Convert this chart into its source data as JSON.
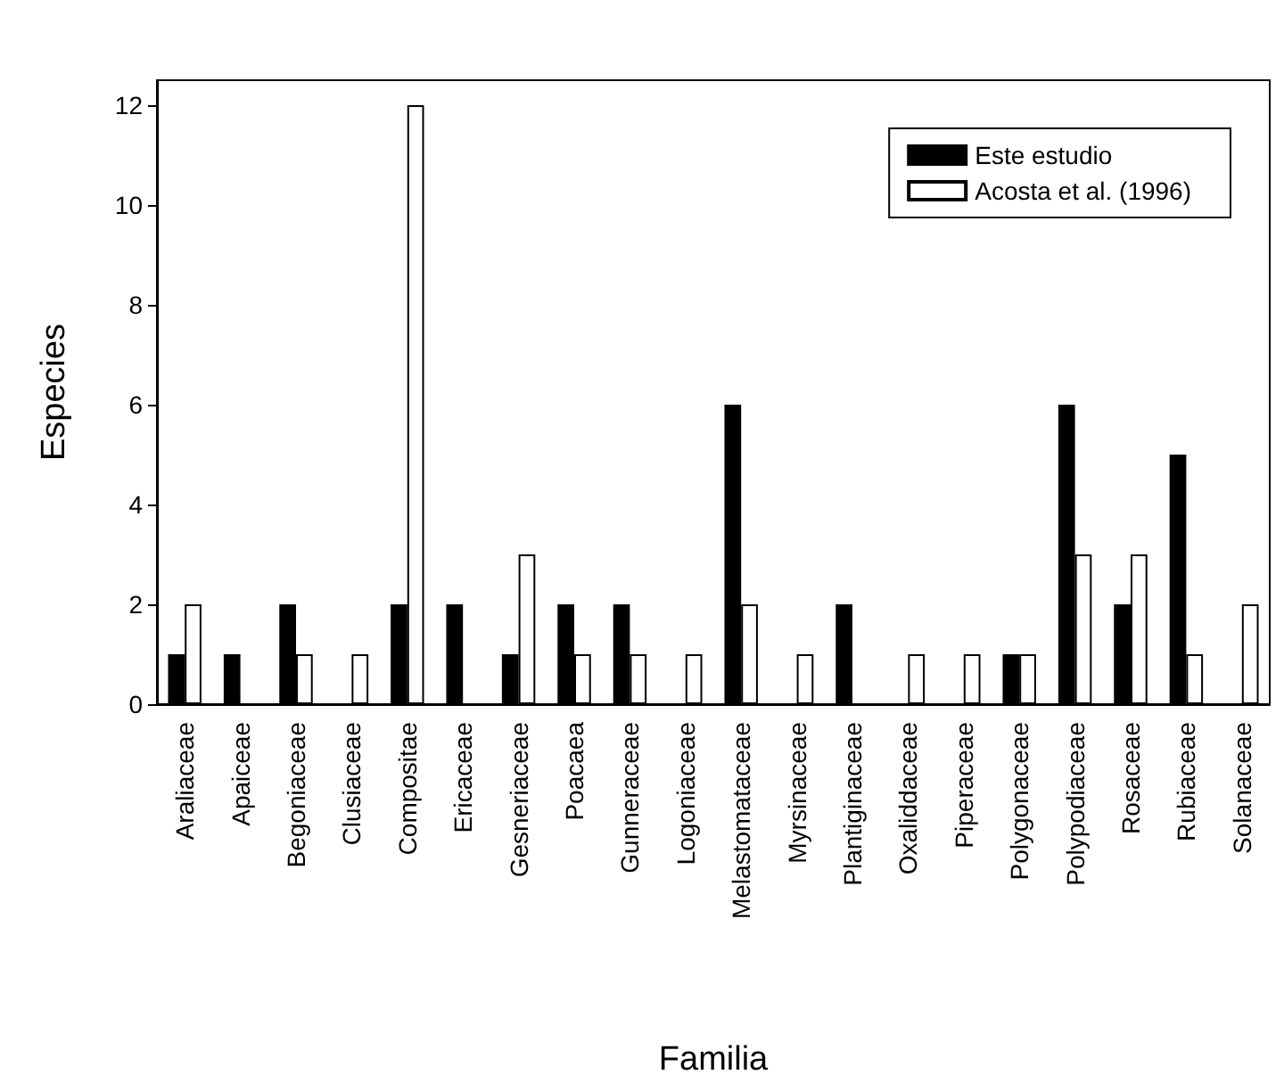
{
  "chart_data": {
    "type": "bar",
    "xlabel": "Familia",
    "ylabel": "Especies",
    "categories": [
      "Araliaceae",
      "Apaiceae",
      "Begoniaceae",
      "Clusiaceae",
      "Compositae",
      "Ericaceae",
      "Gesneriaceae",
      "Poacaea",
      "Gunneraceae",
      "Logoniaceae",
      "Melastomataceae",
      "Myrsinaceae",
      "Plantiginaceae",
      "Oxaliddaceae",
      "Piperaceae",
      "Polygonaceae",
      "Polypodiaceae",
      "Rosaceae",
      "Rubiaceae",
      "Solanaceae"
    ],
    "series": [
      {
        "name": "Este estudio",
        "color": "#000000",
        "values": [
          1,
          1,
          2,
          0,
          2,
          2,
          1,
          2,
          2,
          0,
          6,
          0,
          2,
          0,
          0,
          1,
          6,
          2,
          5,
          0
        ]
      },
      {
        "name": "Acosta et al. (1996)",
        "color": "#ffffff",
        "values": [
          2,
          0,
          1,
          1,
          12,
          0,
          3,
          1,
          1,
          1,
          2,
          1,
          0,
          1,
          1,
          1,
          3,
          3,
          1,
          2
        ]
      }
    ],
    "ylim": [
      0,
      12.5
    ],
    "yticks": [
      0,
      2,
      4,
      6,
      8,
      10,
      12
    ],
    "grid": false,
    "legend": "top right"
  }
}
